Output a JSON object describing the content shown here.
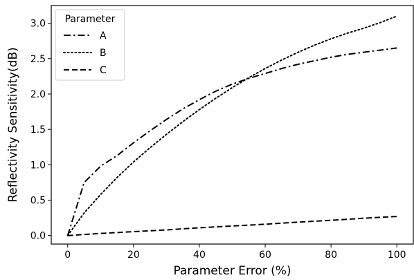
{
  "chart_data": {
    "type": "line",
    "xlabel": "Parameter Error (%)",
    "ylabel": "Reflectivity Sensitivity(dB)",
    "xlim": [
      -5,
      105
    ],
    "ylim": [
      -0.12,
      3.25
    ],
    "x_ticks": [
      0,
      20,
      40,
      60,
      80,
      100
    ],
    "y_ticks": [
      0.0,
      0.5,
      1.0,
      1.5,
      2.0,
      2.5,
      3.0
    ],
    "x_tick_labels": [
      "0",
      "20",
      "40",
      "60",
      "80",
      "100"
    ],
    "y_tick_labels": [
      "0.0",
      "0.5",
      "1.0",
      "1.5",
      "2.0",
      "2.5",
      "3.0"
    ],
    "grid": false,
    "legend": {
      "title": "Parameter",
      "placement": "top-left"
    },
    "series": [
      {
        "name": "A",
        "style": "dashdot",
        "color": "#000000",
        "x": [
          0,
          5,
          10,
          15,
          20,
          25,
          30,
          35,
          40,
          45,
          50,
          55,
          60,
          65,
          70,
          75,
          80,
          85,
          90,
          95,
          100
        ],
        "y": [
          0.0,
          0.75,
          0.98,
          1.13,
          1.31,
          1.48,
          1.64,
          1.79,
          1.92,
          2.04,
          2.14,
          2.22,
          2.29,
          2.36,
          2.42,
          2.47,
          2.52,
          2.56,
          2.59,
          2.62,
          2.65
        ]
      },
      {
        "name": "B",
        "style": "dotted",
        "color": "#000000",
        "x": [
          0,
          5,
          10,
          15,
          20,
          25,
          30,
          35,
          40,
          45,
          50,
          55,
          60,
          65,
          70,
          75,
          80,
          85,
          90,
          95,
          100
        ],
        "y": [
          0.0,
          0.32,
          0.58,
          0.82,
          1.04,
          1.24,
          1.43,
          1.61,
          1.78,
          1.94,
          2.09,
          2.23,
          2.36,
          2.48,
          2.59,
          2.69,
          2.78,
          2.86,
          2.93,
          3.01,
          3.1
        ]
      },
      {
        "name": "C",
        "style": "dashed",
        "color": "#000000",
        "x": [
          0,
          10,
          20,
          30,
          40,
          50,
          60,
          70,
          80,
          90,
          100
        ],
        "y": [
          0.0,
          0.03,
          0.055,
          0.08,
          0.11,
          0.135,
          0.16,
          0.19,
          0.215,
          0.245,
          0.27
        ]
      }
    ]
  }
}
